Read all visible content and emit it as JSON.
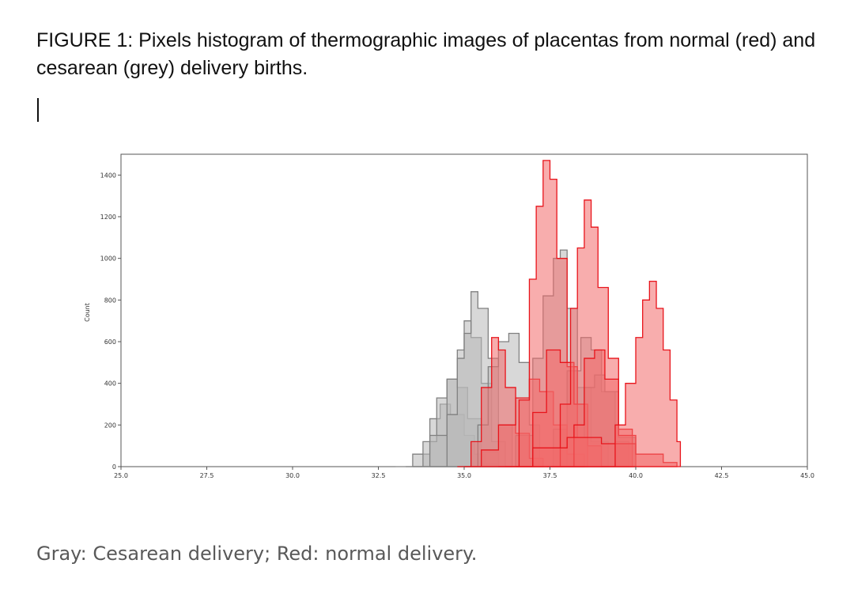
{
  "figure": {
    "caption": "FIGURE 1: Pixels histogram of thermographic images of placentas from normal (red) and cesarean (grey) delivery births.",
    "note": "Gray: Cesarean delivery; Red: normal delivery."
  },
  "colors": {
    "cesarean": "#808080",
    "cesarean_light": "#b8b8b8",
    "normal": "#e8141b",
    "normal_light": "#f26a6a"
  },
  "chart_data": {
    "type": "area",
    "title": "",
    "xlabel": "",
    "ylabel": "Count",
    "xlim": [
      25.0,
      45.0
    ],
    "ylim": [
      0,
      1500
    ],
    "xticks": [
      "25.0",
      "27.5",
      "30.0",
      "32.5",
      "35.0",
      "37.5",
      "40.0",
      "42.5",
      "45.0"
    ],
    "xtick_values": [
      25.0,
      27.5,
      30.0,
      32.5,
      35.0,
      37.5,
      40.0,
      42.5,
      45.0
    ],
    "yticks": [
      "0",
      "200",
      "400",
      "600",
      "800",
      "1000",
      "1200",
      "1400"
    ],
    "ytick_values": [
      0,
      200,
      400,
      600,
      800,
      1000,
      1200,
      1400
    ],
    "grid": false,
    "series": [
      {
        "group": "cesarean",
        "x": [
          33.0,
          33.5,
          34.0,
          34.3,
          34.6,
          35.0,
          35.3,
          35.6,
          36.0
        ],
        "values": [
          0,
          60,
          230,
          300,
          250,
          150,
          60,
          15,
          0
        ]
      },
      {
        "group": "cesarean",
        "x": [
          33.3,
          33.8,
          34.2,
          34.5,
          34.8,
          35.1,
          35.5,
          36.0
        ],
        "values": [
          0,
          120,
          330,
          420,
          380,
          230,
          70,
          0
        ]
      },
      {
        "group": "cesarean",
        "x": [
          33.5,
          34.0,
          34.5,
          34.8,
          35.0,
          35.2,
          35.5,
          35.8,
          36.2
        ],
        "values": [
          0,
          150,
          420,
          560,
          700,
          620,
          400,
          120,
          0
        ]
      },
      {
        "group": "cesarean",
        "x": [
          34.0,
          34.5,
          34.8,
          35.0,
          35.2,
          35.4,
          35.7,
          36.0,
          36.4
        ],
        "values": [
          0,
          250,
          520,
          640,
          840,
          760,
          520,
          200,
          0
        ]
      },
      {
        "group": "cesarean",
        "x": [
          35.0,
          35.4,
          35.7,
          36.0,
          36.3,
          36.6,
          36.9,
          37.2
        ],
        "values": [
          0,
          200,
          480,
          600,
          640,
          500,
          200,
          0
        ]
      },
      {
        "group": "cesarean",
        "x": [
          36.0,
          36.5,
          37.0,
          37.3,
          37.6,
          37.8,
          38.0,
          38.3,
          38.7,
          39.2
        ],
        "values": [
          0,
          150,
          520,
          820,
          1000,
          1040,
          760,
          380,
          120,
          0
        ]
      },
      {
        "group": "cesarean",
        "x": [
          37.2,
          37.6,
          38.0,
          38.4,
          38.7,
          39.0,
          39.4,
          39.8
        ],
        "values": [
          0,
          180,
          460,
          620,
          560,
          360,
          120,
          0
        ]
      },
      {
        "group": "cesarean",
        "x": [
          37.5,
          38.0,
          38.5,
          38.8,
          39.1,
          39.5,
          40.0
        ],
        "values": [
          0,
          140,
          380,
          440,
          360,
          140,
          0
        ]
      },
      {
        "group": "normal",
        "x": [
          34.8,
          35.2,
          35.5,
          35.8,
          36.0,
          36.2,
          36.5,
          36.9,
          37.3
        ],
        "values": [
          0,
          120,
          380,
          620,
          560,
          380,
          160,
          40,
          0
        ]
      },
      {
        "group": "normal",
        "x": [
          35.0,
          35.5,
          36.0,
          36.5,
          36.9,
          37.2,
          37.6,
          38.0,
          38.5
        ],
        "values": [
          0,
          80,
          200,
          330,
          420,
          360,
          200,
          60,
          0
        ]
      },
      {
        "group": "normal",
        "x": [
          36.2,
          36.6,
          36.9,
          37.1,
          37.3,
          37.5,
          37.7,
          38.0,
          38.3,
          38.6
        ],
        "values": [
          0,
          320,
          900,
          1250,
          1470,
          1380,
          1000,
          480,
          140,
          0
        ]
      },
      {
        "group": "normal",
        "x": [
          36.5,
          37.0,
          37.4,
          37.8,
          38.2,
          38.6,
          39.0
        ],
        "values": [
          0,
          260,
          560,
          500,
          300,
          100,
          0
        ]
      },
      {
        "group": "normal",
        "x": [
          37.4,
          37.8,
          38.1,
          38.3,
          38.5,
          38.7,
          38.9,
          39.2,
          39.5,
          39.9
        ],
        "values": [
          0,
          300,
          760,
          1050,
          1280,
          1150,
          860,
          520,
          180,
          0
        ]
      },
      {
        "group": "normal",
        "x": [
          37.8,
          38.2,
          38.5,
          38.8,
          39.1,
          39.5,
          40.0
        ],
        "values": [
          0,
          200,
          520,
          560,
          420,
          150,
          0
        ]
      },
      {
        "group": "normal",
        "x": [
          36.0,
          37.0,
          38.0,
          39.0,
          40.0,
          40.8,
          41.2
        ],
        "values": [
          0,
          90,
          140,
          110,
          60,
          20,
          0
        ]
      },
      {
        "group": "normal",
        "x": [
          39.0,
          39.4,
          39.7,
          40.0,
          40.2,
          40.4,
          40.6,
          40.8,
          41.0,
          41.2,
          41.3
        ],
        "values": [
          0,
          200,
          400,
          620,
          800,
          890,
          760,
          560,
          320,
          120,
          0
        ]
      }
    ]
  }
}
